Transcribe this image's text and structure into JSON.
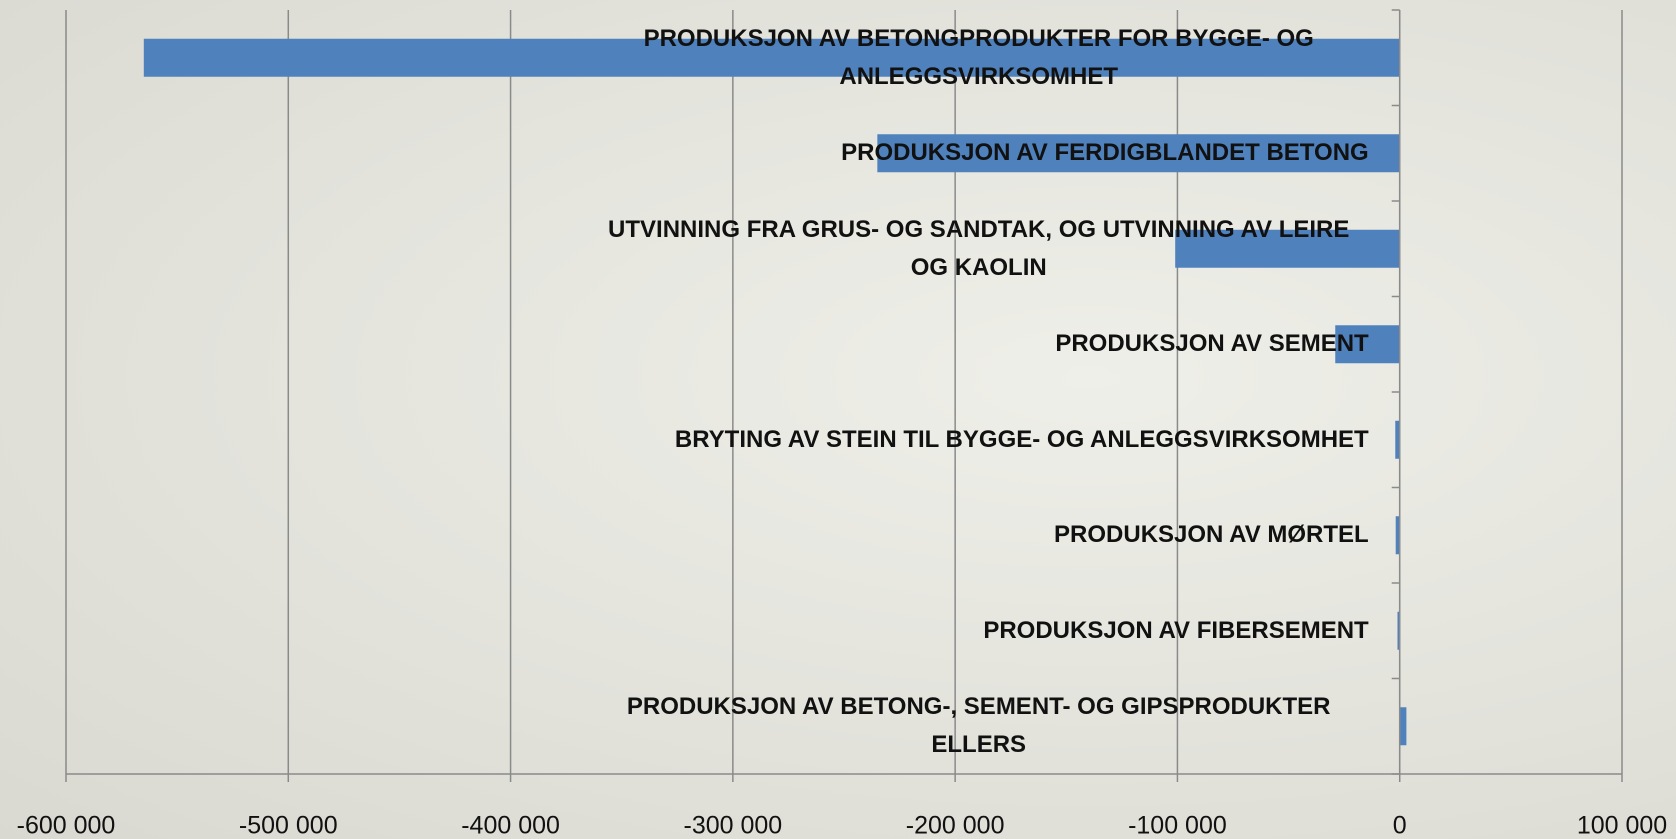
{
  "chart_data": {
    "type": "barh",
    "categories": [
      "PRODUKSJON AV BETONGPRODUKTER FOR BYGGE- OG ANLEGGSVIRKSOMHET",
      "PRODUKSJON AV FERDIGBLANDET BETONG",
      "UTVINNING FRA GRUS- OG SANDTAK, OG UTVINNING AV LEIRE OG KAOLIN",
      "PRODUKSJON AV SEMENT",
      "BRYTING AV STEIN TIL BYGGE- OG ANLEGGSVIRKSOMHET",
      "PRODUKSJON AV MØRTEL",
      "PRODUKSJON AV FIBERSEMENT",
      "PRODUKSJON AV BETONG-, SEMENT- OG GIPSPRODUKTER ELLERS"
    ],
    "values": [
      -565000,
      -235000,
      -101000,
      -29000,
      -2000,
      -1800,
      -1000,
      3000
    ],
    "color": "#4f81bd",
    "xlim": [
      -600000,
      100000
    ],
    "xticks": [
      {
        "value": -600000,
        "label": "-600 000"
      },
      {
        "value": -500000,
        "label": "-500 000"
      },
      {
        "value": -400000,
        "label": "-400 000"
      },
      {
        "value": -300000,
        "label": "-300 000"
      },
      {
        "value": -200000,
        "label": "-200 000"
      },
      {
        "value": -100000,
        "label": "-100 000"
      },
      0,
      {
        "value": 100000,
        "label": "100 000"
      }
    ],
    "grid": true
  }
}
